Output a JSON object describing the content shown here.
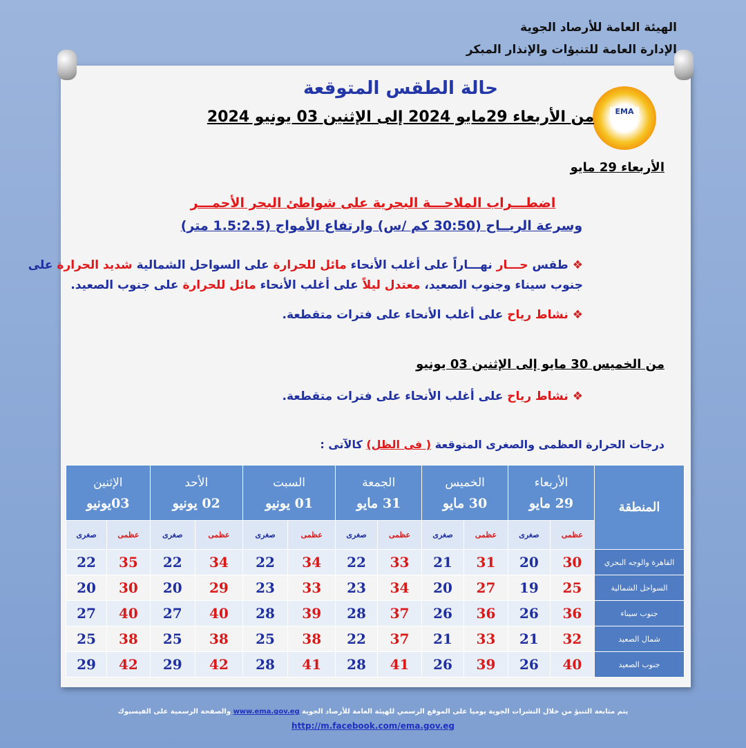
{
  "header": {
    "org_line1": "الهيئة العامة للأرصاد الجوية",
    "org_line2": "الإدارة العامة للتنبؤات والإنذار المبكر",
    "logo_text": "EMA"
  },
  "title": "حالة الطقس المتوقعة",
  "period": "من الأربعاء 29مايو 2024 إلى الإثنين 03 يونيو 2024",
  "section1": {
    "heading": "الأربعاء 29 مايو",
    "alert_line1": "اضطـــراب الملاحـــة البحرية على شواطئ البحر الأحمـــر",
    "alert_line2": "وسرعة الريــاح (30:50 كم /س) وارتفاع الأمواج (1.5:2.5 متر)",
    "bullets": [
      [
        {
          "text": "طقس ",
          "color": "blue"
        },
        {
          "text": "حـــار",
          "color": "red"
        },
        {
          "text": " نهـــاراً على أغلب الأنحاء ",
          "color": "blue"
        },
        {
          "text": "مائل للحرارة",
          "color": "red"
        },
        {
          "text": " على السواحل الشمالية ",
          "color": "blue"
        },
        {
          "text": "شديد الحرارة",
          "color": "red"
        },
        {
          "text": " على جنوب سيناء وجنوب الصعيد، ",
          "color": "blue"
        },
        {
          "text": "معتدل ليلاً",
          "color": "red"
        },
        {
          "text": " على أغلب الأنحاء ",
          "color": "blue"
        },
        {
          "text": "مائل للحرارة",
          "color": "red"
        },
        {
          "text": " على جنوب الصعيد.",
          "color": "blue"
        }
      ],
      [
        {
          "text": "نشاط رياح",
          "color": "red"
        },
        {
          "text": " على أغلب الأنحاء على فترات متقطعة.",
          "color": "blue"
        }
      ]
    ]
  },
  "section2": {
    "heading": "من الخميس 30 مايو إلى الإثنين 03 يونيو",
    "bullets": [
      [
        {
          "text": "نشاط رياح",
          "color": "red"
        },
        {
          "text": " على أغلب الأنحاء على فترات متقطعة.",
          "color": "blue"
        }
      ]
    ]
  },
  "table": {
    "caption": [
      {
        "text": "درجات الحرارة العظمى والصغرى المتوقعة ",
        "color": "blue"
      },
      {
        "text": "( فى الظل)",
        "color": "red"
      },
      {
        "text": " كالآتى :",
        "color": "blue"
      }
    ],
    "region_header": "المنطقة",
    "max_label": "عظمى",
    "min_label": "صغرى",
    "days": [
      {
        "day": "الأربعاء",
        "date": "29 مايو"
      },
      {
        "day": "الخميس",
        "date": "30 مايو"
      },
      {
        "day": "الجمعة",
        "date": "31 مايو"
      },
      {
        "day": "السبت",
        "date": "01 يونيو"
      },
      {
        "day": "الأحد",
        "date": "02 يونيو"
      },
      {
        "day": "الإثنين",
        "date": "03يونيو"
      }
    ],
    "rows": [
      {
        "region": "القاهرة والوجه البحري",
        "values": [
          30,
          20,
          31,
          21,
          33,
          22,
          34,
          22,
          34,
          22,
          35,
          22
        ]
      },
      {
        "region": "السواحل الشمالية",
        "values": [
          25,
          19,
          27,
          20,
          34,
          23,
          33,
          23,
          29,
          20,
          30,
          20
        ]
      },
      {
        "region": "جنوب سيناء",
        "values": [
          36,
          26,
          36,
          26,
          37,
          28,
          39,
          28,
          40,
          27,
          40,
          27
        ]
      },
      {
        "region": "شمال الصعيد",
        "values": [
          32,
          21,
          33,
          21,
          37,
          22,
          38,
          25,
          38,
          25,
          38,
          25
        ]
      },
      {
        "region": "جنوب الصعيد",
        "values": [
          40,
          26,
          39,
          26,
          41,
          28,
          41,
          28,
          42,
          29,
          42,
          29
        ]
      }
    ]
  },
  "footer": {
    "text1": "يتم متابعة التنبؤ من خلال النشرات الجوية يوميا على الموقع الرسمي للهيئة العامة للأرصاد الجوية ",
    "website": "www.ema.gov.eg",
    "text2": " والصفحة الرسمية على الفيسبوك",
    "facebook": "http://m.facebook.com/ema.gov.eg"
  }
}
